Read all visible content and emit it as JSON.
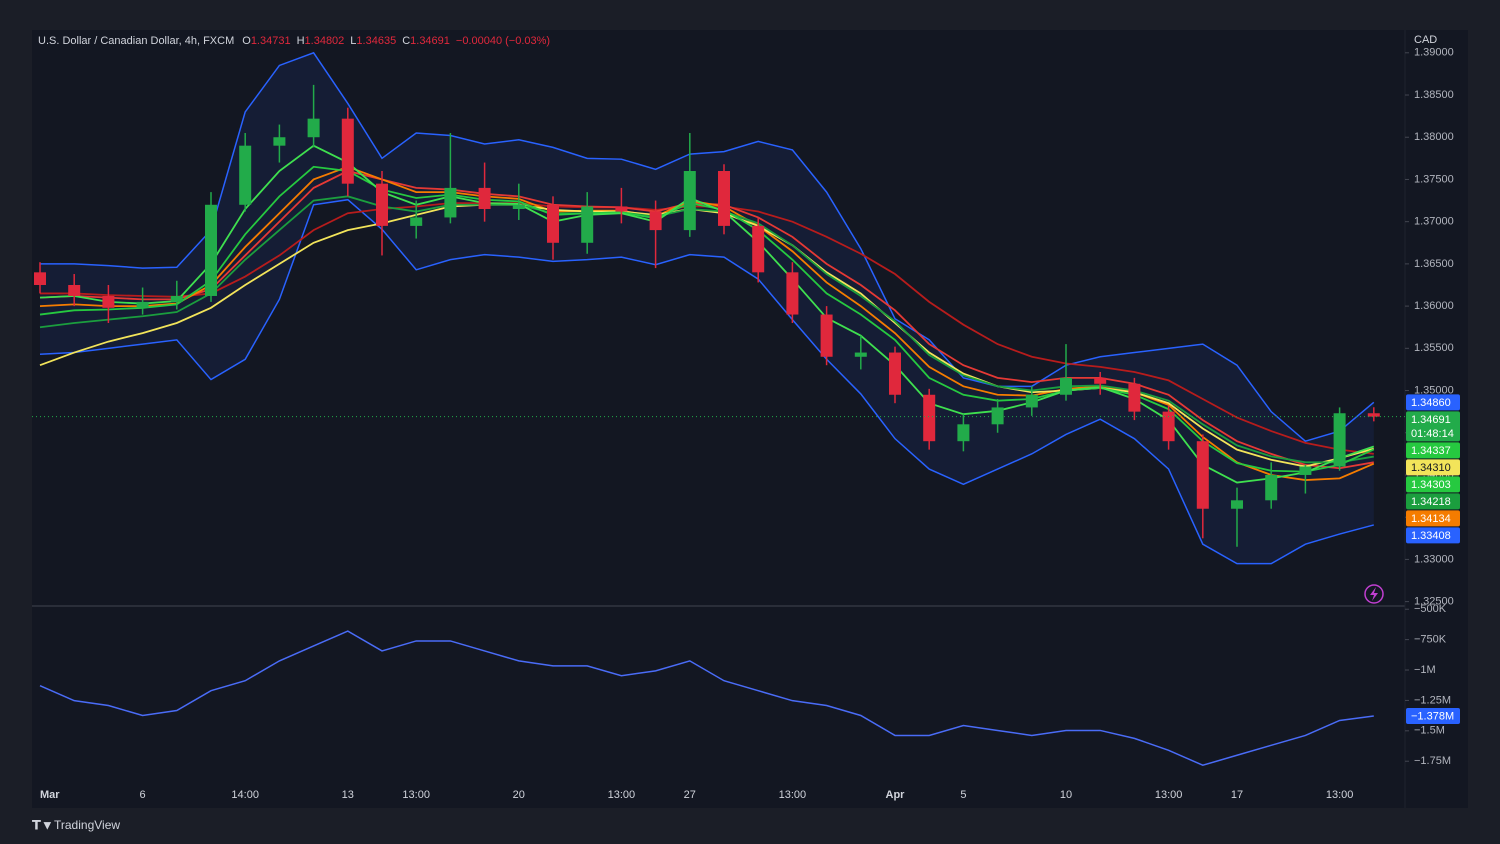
{
  "chart_data": [
    {
      "type": "candlestick",
      "title": "U.S. Dollar / Canadian Dollar, 4h, FXCM",
      "ohlc": [
        {
          "label": "O",
          "value": "1.34731"
        },
        {
          "label": "H",
          "value": "1.34802"
        },
        {
          "label": "L",
          "value": "1.34635"
        },
        {
          "label": "C",
          "value": "1.34691"
        }
      ],
      "change": "−0.00040 (−0.03%)",
      "y_label": "CAD",
      "up_color": "#22ab4a",
      "down_color": "#e0283c",
      "open": [
        1.364,
        1.3625,
        1.3612,
        1.3598,
        1.3605,
        1.3612,
        1.372,
        1.379,
        1.38,
        1.3822,
        1.3745,
        1.3695,
        1.3705,
        1.374,
        1.3715,
        1.372,
        1.3675,
        1.3718,
        1.3712,
        1.369,
        1.376,
        1.3695,
        1.364,
        1.359,
        1.354,
        1.3545,
        1.3495,
        1.344,
        1.346,
        1.348,
        1.3495,
        1.3515,
        1.3508,
        1.3475,
        1.344,
        1.336,
        1.337,
        1.34,
        1.341,
        1.34731
      ],
      "high": [
        1.3652,
        1.3638,
        1.3625,
        1.3622,
        1.363,
        1.3735,
        1.3805,
        1.3815,
        1.3862,
        1.3835,
        1.376,
        1.3725,
        1.3805,
        1.377,
        1.3745,
        1.373,
        1.3735,
        1.374,
        1.3725,
        1.3805,
        1.3768,
        1.3705,
        1.3652,
        1.36,
        1.3565,
        1.3552,
        1.3502,
        1.3472,
        1.349,
        1.3505,
        1.3555,
        1.3522,
        1.3515,
        1.3482,
        1.3448,
        1.3385,
        1.3415,
        1.3412,
        1.348,
        1.34802
      ],
      "low": [
        1.3615,
        1.36,
        1.358,
        1.359,
        1.3596,
        1.3605,
        1.3712,
        1.377,
        1.3788,
        1.373,
        1.366,
        1.368,
        1.3698,
        1.37,
        1.3702,
        1.3655,
        1.3662,
        1.3698,
        1.3645,
        1.3682,
        1.3685,
        1.3628,
        1.358,
        1.353,
        1.3525,
        1.3485,
        1.343,
        1.3428,
        1.345,
        1.347,
        1.3488,
        1.3495,
        1.3465,
        1.343,
        1.3325,
        1.3315,
        1.336,
        1.3378,
        1.3405,
        1.34635
      ],
      "close": [
        1.3625,
        1.3612,
        1.3598,
        1.3605,
        1.3612,
        1.372,
        1.379,
        1.38,
        1.3822,
        1.3745,
        1.3695,
        1.3705,
        1.374,
        1.3715,
        1.372,
        1.3675,
        1.3718,
        1.3712,
        1.369,
        1.376,
        1.3695,
        1.364,
        1.359,
        1.354,
        1.3545,
        1.3495,
        1.344,
        1.346,
        1.348,
        1.3495,
        1.3515,
        1.3508,
        1.3475,
        1.344,
        1.336,
        1.337,
        1.34,
        1.341,
        1.34731,
        1.34691
      ],
      "bands": {
        "color": "#2962ff",
        "upper": [
          1.365,
          1.365,
          1.3648,
          1.3645,
          1.3646,
          1.369,
          1.383,
          1.3885,
          1.39,
          1.384,
          1.3775,
          1.3805,
          1.3802,
          1.3792,
          1.3797,
          1.3788,
          1.3775,
          1.3774,
          1.3762,
          1.378,
          1.3783,
          1.3795,
          1.3785,
          1.3735,
          1.3668,
          1.3585,
          1.356,
          1.3515,
          1.3505,
          1.3505,
          1.353,
          1.354,
          1.3545,
          1.355,
          1.3555,
          1.353,
          1.3475,
          1.344,
          1.3452,
          1.3486
        ],
        "lower": [
          1.3543,
          1.3545,
          1.355,
          1.3555,
          1.356,
          1.3513,
          1.3537,
          1.3608,
          1.372,
          1.3726,
          1.3691,
          1.3643,
          1.3655,
          1.3661,
          1.3658,
          1.3653,
          1.3655,
          1.3658,
          1.3649,
          1.3661,
          1.3658,
          1.3632,
          1.3584,
          1.3537,
          1.3496,
          1.3443,
          1.3407,
          1.3389,
          1.3407,
          1.3425,
          1.3448,
          1.3466,
          1.3443,
          1.3407,
          1.3318,
          1.3295,
          1.3295,
          1.3318,
          1.333,
          1.33408
        ]
      },
      "series": [
        {
          "color": "#b71c1c",
          "values": [
            1.3615,
            1.3615,
            1.3613,
            1.3612,
            1.3611,
            1.3615,
            1.3635,
            1.366,
            1.369,
            1.371,
            1.3715,
            1.3718,
            1.3722,
            1.3722,
            1.3722,
            1.3718,
            1.3717,
            1.3717,
            1.3714,
            1.3718,
            1.3718,
            1.3712,
            1.37,
            1.3682,
            1.3662,
            1.3638,
            1.3605,
            1.3578,
            1.3555,
            1.354,
            1.3532,
            1.3528,
            1.3522,
            1.3512,
            1.349,
            1.3468,
            1.3452,
            1.3438,
            1.343,
            1.3425
          ]
        },
        {
          "color": "#e53935",
          "values": [
            1.361,
            1.3612,
            1.361,
            1.3608,
            1.3608,
            1.362,
            1.366,
            1.37,
            1.374,
            1.376,
            1.375,
            1.374,
            1.3738,
            1.3733,
            1.373,
            1.372,
            1.3718,
            1.3717,
            1.3712,
            1.3722,
            1.372,
            1.3705,
            1.3682,
            1.365,
            1.3625,
            1.3595,
            1.3555,
            1.353,
            1.3515,
            1.351,
            1.3515,
            1.3515,
            1.3508,
            1.3495,
            1.3465,
            1.344,
            1.3425,
            1.3412,
            1.3408,
            1.3415
          ]
        },
        {
          "color": "#f57c00",
          "values": [
            1.36,
            1.3602,
            1.36,
            1.36,
            1.3603,
            1.3625,
            1.367,
            1.371,
            1.375,
            1.3765,
            1.375,
            1.3735,
            1.3735,
            1.373,
            1.3727,
            1.3712,
            1.3713,
            1.3713,
            1.3706,
            1.3725,
            1.3718,
            1.3695,
            1.3665,
            1.3628,
            1.36,
            1.3568,
            1.3528,
            1.3505,
            1.3495,
            1.3494,
            1.3502,
            1.3505,
            1.3498,
            1.3483,
            1.3445,
            1.3415,
            1.34,
            1.3394,
            1.3396,
            1.34134
          ]
        },
        {
          "color": "#f2e45a",
          "values": [
            1.353,
            1.3545,
            1.3558,
            1.3568,
            1.358,
            1.3598,
            1.3625,
            1.365,
            1.3675,
            1.369,
            1.3698,
            1.3708,
            1.3718,
            1.372,
            1.372,
            1.3714,
            1.3712,
            1.3712,
            1.3708,
            1.3715,
            1.371,
            1.3695,
            1.3672,
            1.364,
            1.3615,
            1.358,
            1.3545,
            1.352,
            1.3505,
            1.3498,
            1.35,
            1.3503,
            1.3498,
            1.3485,
            1.3455,
            1.343,
            1.3418,
            1.341,
            1.342,
            1.3431
          ]
        },
        {
          "color": "#1b9e3e",
          "values": [
            1.3575,
            1.358,
            1.3584,
            1.3588,
            1.3593,
            1.3615,
            1.3655,
            1.369,
            1.3725,
            1.373,
            1.3718,
            1.3712,
            1.372,
            1.372,
            1.372,
            1.371,
            1.371,
            1.3711,
            1.3706,
            1.3715,
            1.3712,
            1.3698,
            1.3672,
            1.3638,
            1.3612,
            1.3582,
            1.3542,
            1.3518,
            1.3505,
            1.35,
            1.3505,
            1.3506,
            1.35,
            1.3488,
            1.346,
            1.3435,
            1.3422,
            1.3415,
            1.3415,
            1.34218
          ]
        },
        {
          "color": "#26c940",
          "values": [
            1.359,
            1.3595,
            1.3596,
            1.3598,
            1.3602,
            1.363,
            1.3685,
            1.373,
            1.3765,
            1.376,
            1.3738,
            1.3728,
            1.3732,
            1.3726,
            1.3724,
            1.3708,
            1.371,
            1.3711,
            1.3704,
            1.3722,
            1.3714,
            1.369,
            1.3655,
            1.3615,
            1.359,
            1.356,
            1.3515,
            1.3495,
            1.3488,
            1.349,
            1.35,
            1.3503,
            1.3495,
            1.3478,
            1.344,
            1.3414,
            1.3405,
            1.3404,
            1.3412,
            1.34303
          ]
        },
        {
          "color": "#3fe04f",
          "values": [
            1.361,
            1.3612,
            1.3605,
            1.3603,
            1.3606,
            1.365,
            1.3715,
            1.376,
            1.379,
            1.377,
            1.3735,
            1.372,
            1.373,
            1.3722,
            1.3721,
            1.37,
            1.3708,
            1.371,
            1.37,
            1.3728,
            1.3712,
            1.3676,
            1.3632,
            1.3586,
            1.3565,
            1.353,
            1.3485,
            1.3472,
            1.3476,
            1.3486,
            1.35,
            1.3504,
            1.349,
            1.3465,
            1.3412,
            1.3391,
            1.3396,
            1.3403,
            1.342,
            1.34337
          ]
        }
      ],
      "tags": [
        {
          "value": 1.3486,
          "label": "1.34860",
          "color": "#2962ff"
        },
        {
          "value": 1.34691,
          "label": "1.34691",
          "color": "#22ab4a",
          "countdown": "01:48:14"
        },
        {
          "value": 1.34337,
          "label": "1.34337",
          "color": "#26c940"
        },
        {
          "value": 1.3431,
          "label": "1.34310",
          "color": "#f2e45a"
        },
        {
          "value": 1.34303,
          "label": "1.34303",
          "color": "#26c940"
        },
        {
          "value": 1.34218,
          "label": "1.34218",
          "color": "#1b9e3e"
        },
        {
          "value": 1.34134,
          "label": "1.34134",
          "color": "#f57c00"
        },
        {
          "value": 1.33408,
          "label": "1.33408",
          "color": "#2962ff"
        }
      ],
      "ylim": [
        1.3246,
        1.3927
      ],
      "yticks": [
        {
          "value": 1.39,
          "label": "1.39000"
        },
        {
          "value": 1.385,
          "label": "1.38500"
        },
        {
          "value": 1.38,
          "label": "1.38000"
        },
        {
          "value": 1.375,
          "label": "1.37500"
        },
        {
          "value": 1.37,
          "label": "1.37000"
        },
        {
          "value": 1.365,
          "label": "1.36500"
        },
        {
          "value": 1.36,
          "label": "1.36000"
        },
        {
          "value": 1.355,
          "label": "1.35500"
        },
        {
          "value": 1.35,
          "label": "1.35000"
        },
        {
          "value": 1.345,
          "label": "1.34500"
        },
        {
          "value": 1.34,
          "label": "1.34000"
        },
        {
          "value": 1.335,
          "label": "1.33500"
        },
        {
          "value": 1.33,
          "label": "1.33000"
        },
        {
          "value": 1.325,
          "label": "1.32500"
        }
      ],
      "grid": false
    },
    {
      "type": "line",
      "color": "#4a6cf7",
      "categories": [
        "Mar",
        null,
        null,
        "6",
        null,
        null,
        "14:00",
        null,
        null,
        "13",
        null,
        "13:00",
        null,
        null,
        "20",
        null,
        null,
        "13:00",
        null,
        "27",
        null,
        null,
        "13:00",
        null,
        null,
        "Apr",
        null,
        "5",
        null,
        null,
        "10",
        null,
        null,
        "13:00",
        null,
        "17",
        null,
        null,
        "13:00",
        null
      ],
      "values": [
        -1129000,
        -1252000,
        -1292000,
        -1374000,
        -1333000,
        -1170000,
        -1088000,
        -925000,
        -802000,
        -680000,
        -843000,
        -761000,
        -761000,
        -843000,
        -925000,
        -966000,
        -966000,
        -1047000,
        -1007000,
        -925000,
        -1088000,
        -1170000,
        -1252000,
        -1292000,
        -1374000,
        -1538000,
        -1538000,
        -1456000,
        -1497000,
        -1538000,
        -1497000,
        -1497000,
        -1562000,
        -1660000,
        -1783000,
        -1701000,
        -1619000,
        -1538000,
        -1415000,
        -1378000
      ],
      "tags": [
        {
          "value": -1378000,
          "label": "−1.378M",
          "color": "#2962ff"
        }
      ],
      "ylim": [
        -2110000,
        -490000
      ],
      "yticks": [
        {
          "value": -500000,
          "label": "−500K"
        },
        {
          "value": -750000,
          "label": "−750K"
        },
        {
          "value": -1000000,
          "label": "−1M"
        },
        {
          "value": -1250000,
          "label": "−1.25M"
        },
        {
          "value": -1500000,
          "label": "−1.5M"
        },
        {
          "value": -1750000,
          "label": "−1.75M"
        }
      ],
      "grid": false
    }
  ],
  "footer": "TradingView"
}
